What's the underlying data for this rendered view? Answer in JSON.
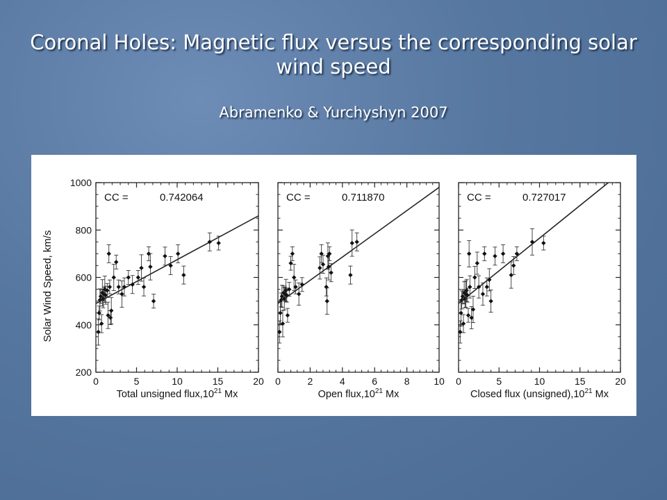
{
  "slide": {
    "title": "Coronal Holes: Magnetic flux versus the corresponding solar wind speed",
    "subtitle": "Abramenko & Yurchyshyn 2007"
  },
  "chart_data": [
    {
      "type": "scatter",
      "ylabel": "Solar Wind Speed, km/s",
      "xlabel_parts": [
        "Total unsigned flux,10",
        "21",
        " Mx"
      ],
      "xlim": [
        0,
        20
      ],
      "ylim": [
        200,
        1000
      ],
      "xticks": [
        0,
        5,
        10,
        15,
        20
      ],
      "yticks": [
        200,
        400,
        600,
        800,
        1000
      ],
      "cc_label": "CC =",
      "cc_value": "0.742064",
      "fit": [
        [
          0,
          490
        ],
        [
          20,
          860
        ]
      ],
      "points": [
        [
          0.3,
          370
        ],
        [
          0.4,
          450
        ],
        [
          0.5,
          505
        ],
        [
          0.6,
          520
        ],
        [
          0.7,
          405
        ],
        [
          0.8,
          535
        ],
        [
          0.9,
          510
        ],
        [
          1.0,
          530
        ],
        [
          1.1,
          550
        ],
        [
          1.2,
          525
        ],
        [
          1.4,
          545
        ],
        [
          1.5,
          440
        ],
        [
          1.6,
          700
        ],
        [
          1.7,
          560
        ],
        [
          1.8,
          430
        ],
        [
          1.9,
          460
        ],
        [
          2.2,
          600
        ],
        [
          2.5,
          665
        ],
        [
          2.8,
          560
        ],
        [
          3.2,
          530
        ],
        [
          3.5,
          560
        ],
        [
          4.0,
          600
        ],
        [
          4.5,
          570
        ],
        [
          5.2,
          600
        ],
        [
          5.6,
          640
        ],
        [
          5.9,
          560
        ],
        [
          6.5,
          700
        ],
        [
          6.7,
          645
        ],
        [
          7.1,
          500
        ],
        [
          8.5,
          690
        ],
        [
          9.2,
          650
        ],
        [
          10.1,
          700
        ],
        [
          10.8,
          610
        ],
        [
          14.0,
          750
        ],
        [
          15.1,
          745
        ]
      ]
    },
    {
      "type": "scatter",
      "xlabel_parts": [
        "Open flux,10",
        "21",
        " Mx"
      ],
      "xlim": [
        0,
        10
      ],
      "ylim": [
        200,
        1000
      ],
      "xticks": [
        0,
        2,
        4,
        6,
        8,
        10
      ],
      "yticks": [
        200,
        400,
        600,
        800,
        1000
      ],
      "cc_label": "CC =",
      "cc_value": "0.711870",
      "fit": [
        [
          0,
          490
        ],
        [
          10,
          980
        ]
      ],
      "points": [
        [
          0.1,
          370
        ],
        [
          0.15,
          450
        ],
        [
          0.2,
          505
        ],
        [
          0.25,
          520
        ],
        [
          0.3,
          405
        ],
        [
          0.35,
          535
        ],
        [
          0.4,
          510
        ],
        [
          0.45,
          530
        ],
        [
          0.5,
          545
        ],
        [
          0.55,
          525
        ],
        [
          0.6,
          440
        ],
        [
          0.7,
          550
        ],
        [
          0.8,
          660
        ],
        [
          0.9,
          700
        ],
        [
          1.0,
          600
        ],
        [
          1.1,
          560
        ],
        [
          1.3,
          530
        ],
        [
          1.5,
          570
        ],
        [
          2.6,
          640
        ],
        [
          2.7,
          700
        ],
        [
          2.8,
          655
        ],
        [
          3.0,
          560
        ],
        [
          3.05,
          500
        ],
        [
          3.1,
          690
        ],
        [
          3.15,
          645
        ],
        [
          3.2,
          700
        ],
        [
          3.3,
          620
        ],
        [
          4.5,
          610
        ],
        [
          4.6,
          745
        ],
        [
          4.9,
          750
        ]
      ]
    },
    {
      "type": "scatter",
      "xlabel_parts": [
        "Closed flux (unsigned),10",
        "21",
        " Mx"
      ],
      "xlim": [
        0,
        20
      ],
      "ylim": [
        200,
        1000
      ],
      "xticks": [
        0,
        5,
        10,
        15,
        20
      ],
      "yticks": [
        200,
        400,
        600,
        800,
        1000
      ],
      "cc_label": "CC =",
      "cc_value": "0.727017",
      "fit": [
        [
          0,
          490
        ],
        [
          18.5,
          1000
        ]
      ],
      "points": [
        [
          0.2,
          370
        ],
        [
          0.3,
          450
        ],
        [
          0.4,
          505
        ],
        [
          0.5,
          520
        ],
        [
          0.6,
          405
        ],
        [
          0.7,
          535
        ],
        [
          0.8,
          510
        ],
        [
          0.9,
          530
        ],
        [
          1.0,
          545
        ],
        [
          1.1,
          525
        ],
        [
          1.2,
          440
        ],
        [
          1.3,
          700
        ],
        [
          1.4,
          560
        ],
        [
          1.6,
          430
        ],
        [
          1.8,
          465
        ],
        [
          2.0,
          600
        ],
        [
          2.3,
          660
        ],
        [
          2.5,
          560
        ],
        [
          3.0,
          530
        ],
        [
          3.2,
          700
        ],
        [
          3.5,
          560
        ],
        [
          3.8,
          590
        ],
        [
          4.0,
          500
        ],
        [
          4.5,
          690
        ],
        [
          5.5,
          700
        ],
        [
          6.5,
          610
        ],
        [
          6.8,
          650
        ],
        [
          7.2,
          700
        ],
        [
          9.1,
          750
        ],
        [
          10.5,
          745
        ]
      ]
    }
  ]
}
